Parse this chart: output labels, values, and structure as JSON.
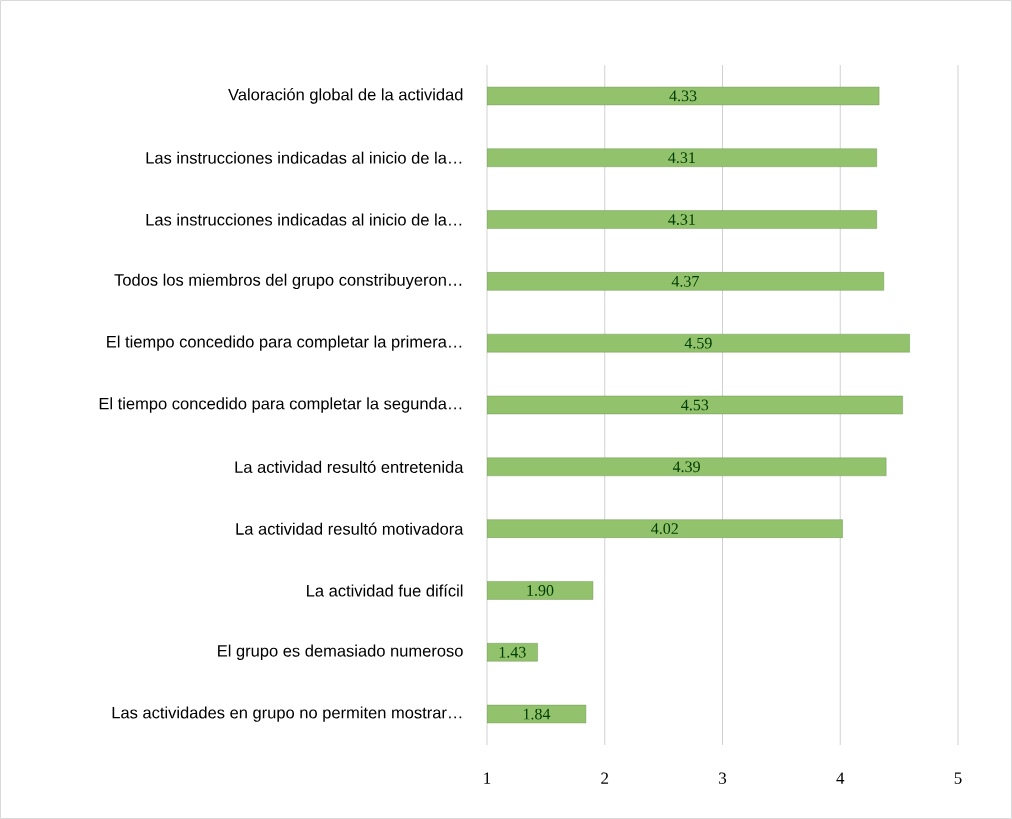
{
  "chart_data": {
    "type": "bar",
    "orientation": "horizontal",
    "categories": [
      "Valoración global de la actividad",
      "Las instrucciones indicadas al inicio de la…",
      "Las instrucciones indicadas al inicio de la…",
      "Todos los miembros del grupo constribuyeron…",
      "El tiempo concedido para completar la primera…",
      "El tiempo concedido para completar la segunda…",
      "La actividad resultó entretenida",
      "La actividad resultó motivadora",
      "La actividad fue difícil",
      "El grupo es demasiado numeroso",
      "Las actividades en grupo no permiten mostrar…"
    ],
    "values": [
      4.33,
      4.31,
      4.31,
      4.37,
      4.59,
      4.53,
      4.39,
      4.02,
      1.9,
      1.43,
      1.84
    ],
    "value_labels": [
      "4.33",
      "4.31",
      "4.31",
      "4.37",
      "4.59",
      "4.53",
      "4.39",
      "4.02",
      "1.90",
      "1.43",
      "1.84"
    ],
    "color": "#92c36c",
    "xlim": [
      1,
      5
    ],
    "xticks": [
      1,
      2,
      3,
      4,
      5
    ],
    "grid": "x"
  }
}
